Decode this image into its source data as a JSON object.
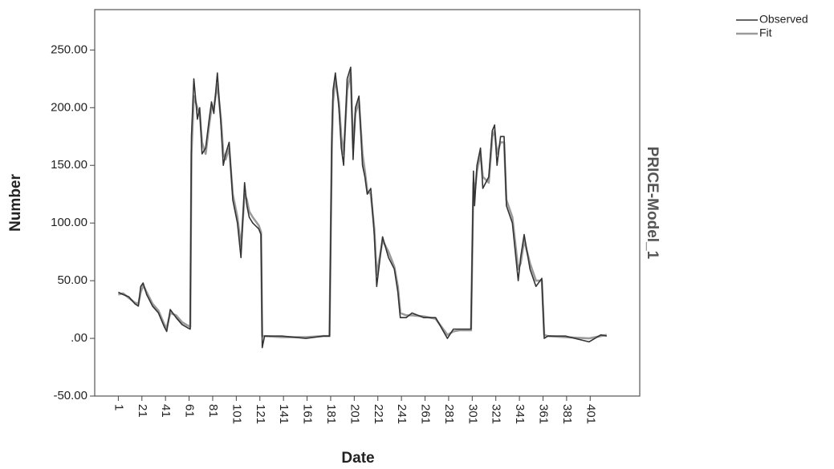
{
  "chart_data": {
    "type": "line",
    "x_label": "Date",
    "y_label": "Number",
    "panel_label": "PRICE-Model_1",
    "x": [
      1,
      5,
      10,
      15,
      18,
      20,
      22,
      25,
      30,
      35,
      40,
      42,
      45,
      50,
      55,
      60,
      62,
      63,
      65,
      68,
      70,
      72,
      75,
      78,
      80,
      82,
      85,
      88,
      90,
      92,
      95,
      98,
      100,
      102,
      105,
      108,
      110,
      112,
      115,
      120,
      122,
      123,
      125,
      140,
      160,
      175,
      180,
      182,
      183,
      185,
      188,
      190,
      192,
      195,
      198,
      200,
      202,
      205,
      208,
      210,
      212,
      215,
      218,
      220,
      225,
      230,
      235,
      238,
      240,
      245,
      250,
      260,
      270,
      280,
      285,
      290,
      300,
      302,
      303,
      305,
      308,
      310,
      315,
      318,
      320,
      322,
      325,
      328,
      330,
      335,
      340,
      342,
      345,
      350,
      355,
      360,
      362,
      365,
      380,
      400,
      410,
      415
    ],
    "series": [
      {
        "name": "Observed",
        "color": "#333333",
        "values": [
          40,
          38,
          36,
          30,
          28,
          45,
          48,
          38,
          28,
          22,
          10,
          6,
          25,
          18,
          12,
          9,
          8,
          175,
          225,
          190,
          200,
          160,
          165,
          190,
          205,
          195,
          230,
          185,
          150,
          160,
          170,
          120,
          110,
          100,
          70,
          135,
          115,
          105,
          100,
          95,
          90,
          -8,
          2,
          2,
          0,
          2,
          2,
          175,
          215,
          230,
          200,
          165,
          150,
          225,
          235,
          155,
          200,
          210,
          150,
          140,
          125,
          130,
          90,
          45,
          88,
          70,
          60,
          40,
          18,
          18,
          22,
          18,
          18,
          0,
          8,
          8,
          8,
          145,
          115,
          150,
          165,
          130,
          140,
          180,
          185,
          150,
          175,
          175,
          115,
          100,
          50,
          70,
          90,
          60,
          45,
          52,
          0,
          2,
          2,
          -3,
          3,
          2
        ]
      },
      {
        "name": "Fit",
        "color": "#9a9a9a",
        "values": [
          38,
          39,
          35,
          31,
          30,
          40,
          46,
          40,
          30,
          24,
          12,
          9,
          22,
          20,
          14,
          11,
          10,
          160,
          210,
          200,
          195,
          170,
          160,
          185,
          200,
          200,
          220,
          190,
          160,
          155,
          165,
          125,
          115,
          105,
          80,
          125,
          120,
          110,
          105,
          98,
          92,
          2,
          2,
          1,
          1,
          2,
          2,
          165,
          205,
          225,
          205,
          175,
          160,
          215,
          230,
          165,
          195,
          205,
          160,
          145,
          128,
          125,
          95,
          55,
          85,
          75,
          62,
          45,
          22,
          20,
          20,
          19,
          17,
          3,
          6,
          7,
          7,
          135,
          125,
          145,
          160,
          140,
          135,
          175,
          180,
          160,
          170,
          170,
          120,
          105,
          60,
          65,
          85,
          65,
          50,
          50,
          3,
          2,
          1,
          0,
          2,
          3
        ]
      }
    ],
    "xlim": [
      -19,
      443
    ],
    "xticks": [
      1,
      21,
      41,
      61,
      81,
      101,
      121,
      141,
      161,
      181,
      201,
      221,
      241,
      261,
      281,
      301,
      321,
      341,
      361,
      381,
      401
    ],
    "ylim": [
      -50,
      285
    ],
    "yticks": [
      {
        "value": -50,
        "label": "-50.00"
      },
      {
        "value": 0,
        "label": ".00"
      },
      {
        "value": 50,
        "label": "50.00"
      },
      {
        "value": 100,
        "label": "100.00"
      },
      {
        "value": 150,
        "label": "150.00"
      },
      {
        "value": 200,
        "label": "200.00"
      },
      {
        "value": 250,
        "label": "250.00"
      }
    ],
    "grid": false
  }
}
